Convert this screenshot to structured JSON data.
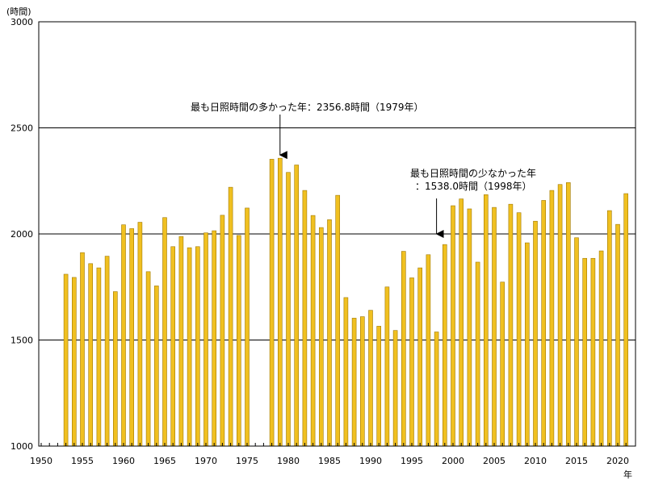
{
  "chart_data": {
    "type": "bar",
    "y_unit": "(時間)",
    "x_unit": "年",
    "ylim": [
      1000,
      3000
    ],
    "xlim": [
      1950,
      2021
    ],
    "y_ticks": [
      1000,
      1500,
      2000,
      2500,
      3000
    ],
    "x_ticks": [
      1950,
      1955,
      1960,
      1965,
      1970,
      1975,
      1980,
      1985,
      1990,
      1995,
      2000,
      2005,
      2010,
      2015,
      2020
    ],
    "grid": "horizontal",
    "bar_color": "#f0c020",
    "bar_edge_color": "#a07800",
    "values": [
      {
        "x": 1953,
        "y": 1810
      },
      {
        "x": 1954,
        "y": 1795
      },
      {
        "x": 1955,
        "y": 1912
      },
      {
        "x": 1956,
        "y": 1860
      },
      {
        "x": 1957,
        "y": 1840
      },
      {
        "x": 1958,
        "y": 1895
      },
      {
        "x": 1959,
        "y": 1728
      },
      {
        "x": 1960,
        "y": 2043
      },
      {
        "x": 1961,
        "y": 2025
      },
      {
        "x": 1962,
        "y": 2055
      },
      {
        "x": 1963,
        "y": 1822
      },
      {
        "x": 1964,
        "y": 1755
      },
      {
        "x": 1965,
        "y": 2077
      },
      {
        "x": 1966,
        "y": 1940
      },
      {
        "x": 1967,
        "y": 1988
      },
      {
        "x": 1968,
        "y": 1935
      },
      {
        "x": 1969,
        "y": 1940
      },
      {
        "x": 1970,
        "y": 2005
      },
      {
        "x": 1971,
        "y": 2015
      },
      {
        "x": 1972,
        "y": 2088
      },
      {
        "x": 1973,
        "y": 2220
      },
      {
        "x": 1974,
        "y": 1993
      },
      {
        "x": 1975,
        "y": 2122
      },
      {
        "x": 1978,
        "y": 2352
      },
      {
        "x": 1979,
        "y": 2356.8
      },
      {
        "x": 1980,
        "y": 2290
      },
      {
        "x": 1981,
        "y": 2325
      },
      {
        "x": 1982,
        "y": 2205
      },
      {
        "x": 1983,
        "y": 2087
      },
      {
        "x": 1984,
        "y": 2030
      },
      {
        "x": 1985,
        "y": 2067
      },
      {
        "x": 1986,
        "y": 2182
      },
      {
        "x": 1987,
        "y": 1700
      },
      {
        "x": 1988,
        "y": 1603
      },
      {
        "x": 1989,
        "y": 1610
      },
      {
        "x": 1990,
        "y": 1640
      },
      {
        "x": 1991,
        "y": 1565
      },
      {
        "x": 1992,
        "y": 1750
      },
      {
        "x": 1993,
        "y": 1545
      },
      {
        "x": 1994,
        "y": 1918
      },
      {
        "x": 1995,
        "y": 1793
      },
      {
        "x": 1996,
        "y": 1840
      },
      {
        "x": 1997,
        "y": 1902
      },
      {
        "x": 1998,
        "y": 1538.0
      },
      {
        "x": 1999,
        "y": 1950
      },
      {
        "x": 2000,
        "y": 2133
      },
      {
        "x": 2001,
        "y": 2165
      },
      {
        "x": 2002,
        "y": 2118
      },
      {
        "x": 2003,
        "y": 1867
      },
      {
        "x": 2004,
        "y": 2185
      },
      {
        "x": 2005,
        "y": 2125
      },
      {
        "x": 2006,
        "y": 1773
      },
      {
        "x": 2007,
        "y": 2140
      },
      {
        "x": 2008,
        "y": 2100
      },
      {
        "x": 2009,
        "y": 1958
      },
      {
        "x": 2010,
        "y": 2060
      },
      {
        "x": 2011,
        "y": 2158
      },
      {
        "x": 2012,
        "y": 2205
      },
      {
        "x": 2013,
        "y": 2233
      },
      {
        "x": 2014,
        "y": 2242
      },
      {
        "x": 2015,
        "y": 1982
      },
      {
        "x": 2016,
        "y": 1885
      },
      {
        "x": 2017,
        "y": 1885
      },
      {
        "x": 2018,
        "y": 1920
      },
      {
        "x": 2019,
        "y": 2110
      },
      {
        "x": 2020,
        "y": 2045
      },
      {
        "x": 2021,
        "y": 2190
      }
    ],
    "annotations": [
      {
        "lines": [
          "最も日照時間の多かった年：2356.8時間（1979年）"
        ],
        "target_x": 1979,
        "target_y": 2356.8
      },
      {
        "lines": [
          "最も日照時間の少なかった年",
          "：1538.0時間（1998年）"
        ],
        "target_x": 1998,
        "target_y": 2000
      }
    ]
  }
}
